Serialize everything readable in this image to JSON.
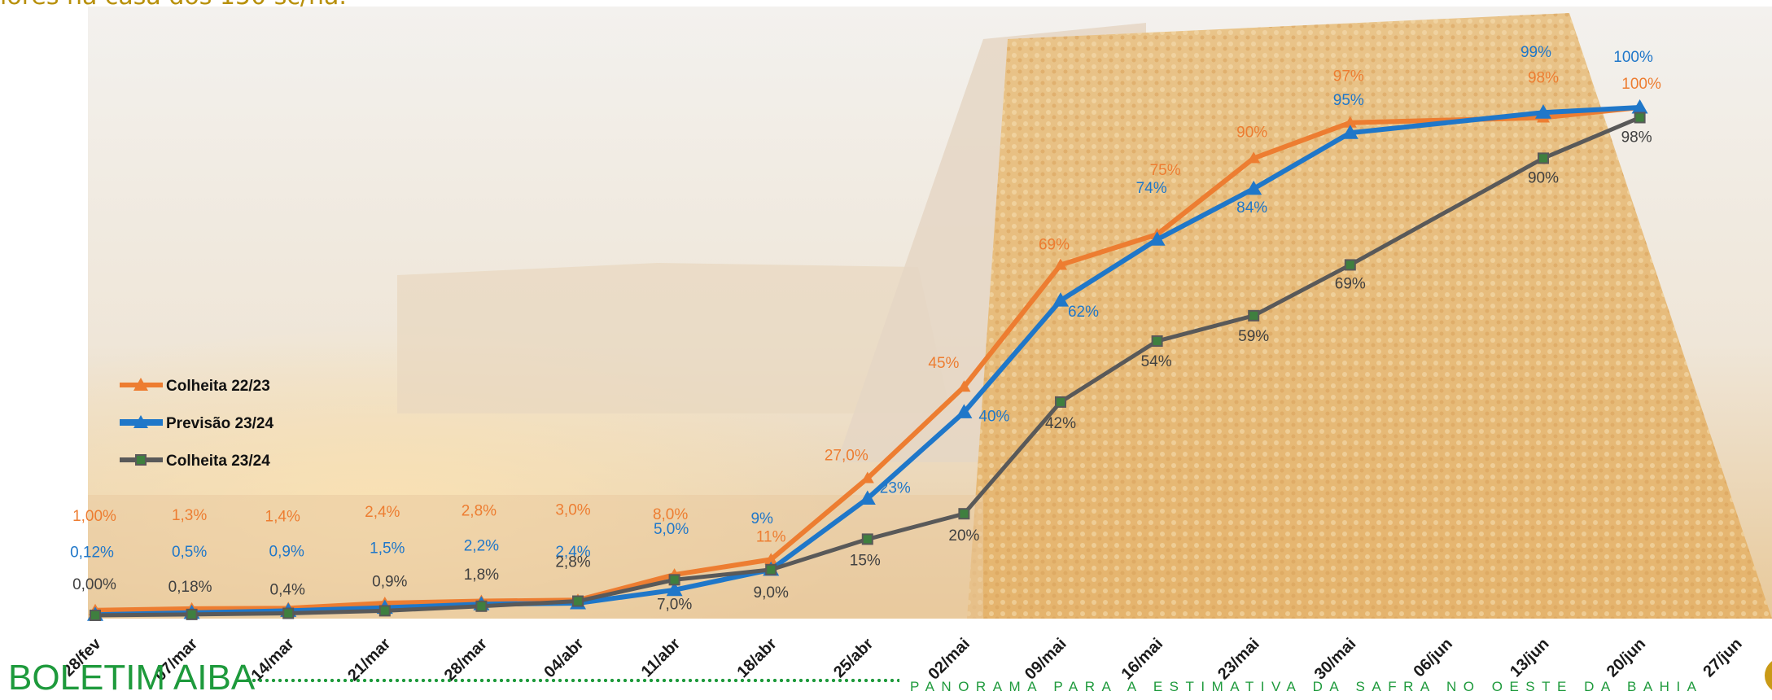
{
  "header": {
    "fragment_text": "lores na casa dos 150 sc/ha."
  },
  "footer": {
    "brand": "BOLETIM AIBA",
    "tagline": "PANORAMA PARA A ESTIMATIVA DA SAFRA NO OESTE DA BAHIA"
  },
  "colors": {
    "orange": "#ed7d31",
    "blue": "#1f77c9",
    "gray": "#595959",
    "marker_green": "#3f7f3f",
    "brand_green": "#1e9a3c"
  },
  "chart_data": {
    "type": "line",
    "x_ticks": [
      "28/fev",
      "07/mar",
      "14/mar",
      "21/mar",
      "28/mar",
      "04/abr",
      "11/abr",
      "18/abr",
      "25/abr",
      "02/mai",
      "09/mai",
      "16/mai",
      "23/mai",
      "30/mai",
      "06/jun",
      "13/jun",
      "20/jun",
      "27/jun"
    ],
    "ylim": [
      0,
      100
    ],
    "grid": false,
    "legend_position": "middle-left",
    "series": [
      {
        "name": "Colheita 22/23",
        "color": "#ed7d31",
        "marker": "triangle",
        "x": [
          0,
          1,
          2,
          3,
          4,
          5,
          6,
          7,
          8,
          9,
          10,
          11,
          12,
          13,
          15,
          16
        ],
        "values": [
          1.0,
          1.3,
          1.4,
          2.4,
          2.8,
          3.0,
          8.0,
          11,
          27.0,
          45,
          69,
          75,
          90,
          97,
          98,
          100
        ],
        "labels": [
          "1,00%",
          "1,3%",
          "1,4%",
          "2,4%",
          "2,8%",
          "3,0%",
          "8,0%",
          "11%",
          "27,0%",
          "45%",
          "69%",
          "75%",
          "90%",
          "97%",
          "98%",
          "100%"
        ]
      },
      {
        "name": "Previsão 23/24",
        "color": "#1f77c9",
        "marker": "triangle",
        "x": [
          0,
          1,
          2,
          3,
          4,
          5,
          6,
          7,
          8,
          9,
          10,
          11,
          12,
          13,
          15,
          16
        ],
        "values": [
          0.12,
          0.5,
          0.9,
          1.5,
          2.2,
          2.4,
          5.0,
          9,
          23,
          40,
          62,
          74,
          84,
          95,
          99,
          100
        ],
        "labels": [
          "0,12%",
          "0,5%",
          "0,9%",
          "1,5%",
          "2,2%",
          "2,4%",
          "5,0%",
          "9%",
          "23%",
          "40%",
          "62%",
          "74%",
          "84%",
          "95%",
          "99%",
          "100%"
        ]
      },
      {
        "name": "Colheita 23/24",
        "color": "#595959",
        "marker": "square",
        "x": [
          0,
          1,
          2,
          3,
          4,
          5,
          6,
          7,
          8,
          9,
          10,
          11,
          12,
          13,
          15,
          16
        ],
        "values": [
          0.0,
          0.18,
          0.4,
          0.9,
          1.8,
          2.8,
          7.0,
          9.0,
          15,
          20,
          42,
          54,
          59,
          69,
          90,
          98
        ],
        "labels": [
          "0,00%",
          "0,18%",
          "0,4%",
          "0,9%",
          "1,8%",
          "2,8%",
          "7,0%",
          "9,0%",
          "15%",
          "20%",
          "42%",
          "54%",
          "59%",
          "69%",
          "90%",
          "98%"
        ]
      }
    ]
  }
}
